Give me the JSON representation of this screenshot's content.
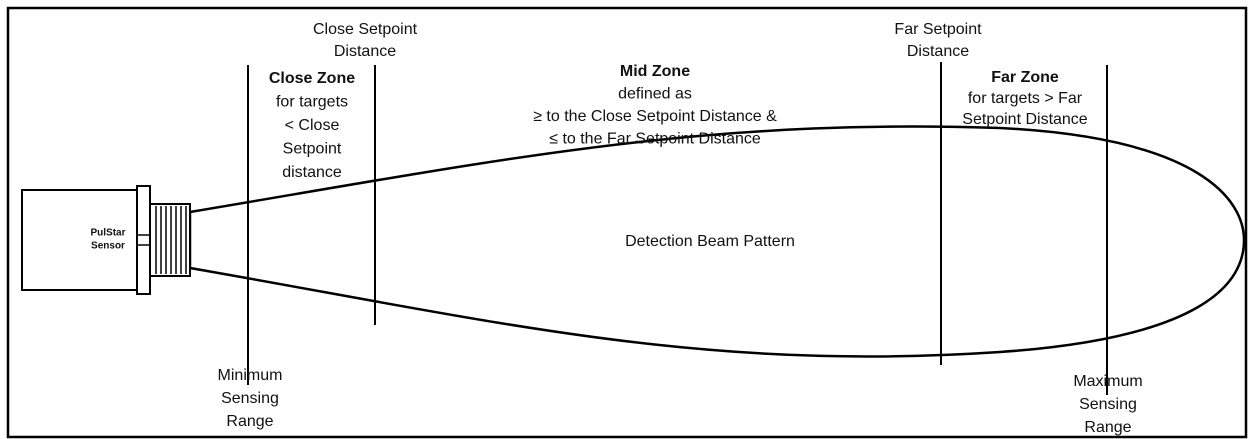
{
  "close_setpoint": {
    "lines": [
      "Close Setpoint",
      "Distance"
    ]
  },
  "close_zone": {
    "title": "Close Zone",
    "lines": [
      "for targets",
      "< Close",
      "Setpoint",
      "distance"
    ]
  },
  "mid_zone": {
    "title": "Mid Zone",
    "lines": [
      "defined as",
      "≥ to the Close Setpoint Distance &",
      "≤ to the Far Setpoint Distance"
    ]
  },
  "far_setpoint": {
    "lines": [
      "Far Setpoint",
      "Distance"
    ]
  },
  "far_zone": {
    "title": "Far Zone",
    "lines": [
      "for targets > Far",
      "Setpoint Distance"
    ]
  },
  "beam": {
    "label": "Detection Beam Pattern"
  },
  "sensor": {
    "lines": [
      "PulStar",
      "Sensor"
    ]
  },
  "minimum_range": {
    "lines": [
      "Minimum",
      "Sensing",
      "Range"
    ]
  },
  "maximum_range": {
    "lines": [
      "Maximum",
      "Sensing",
      "Range"
    ]
  }
}
